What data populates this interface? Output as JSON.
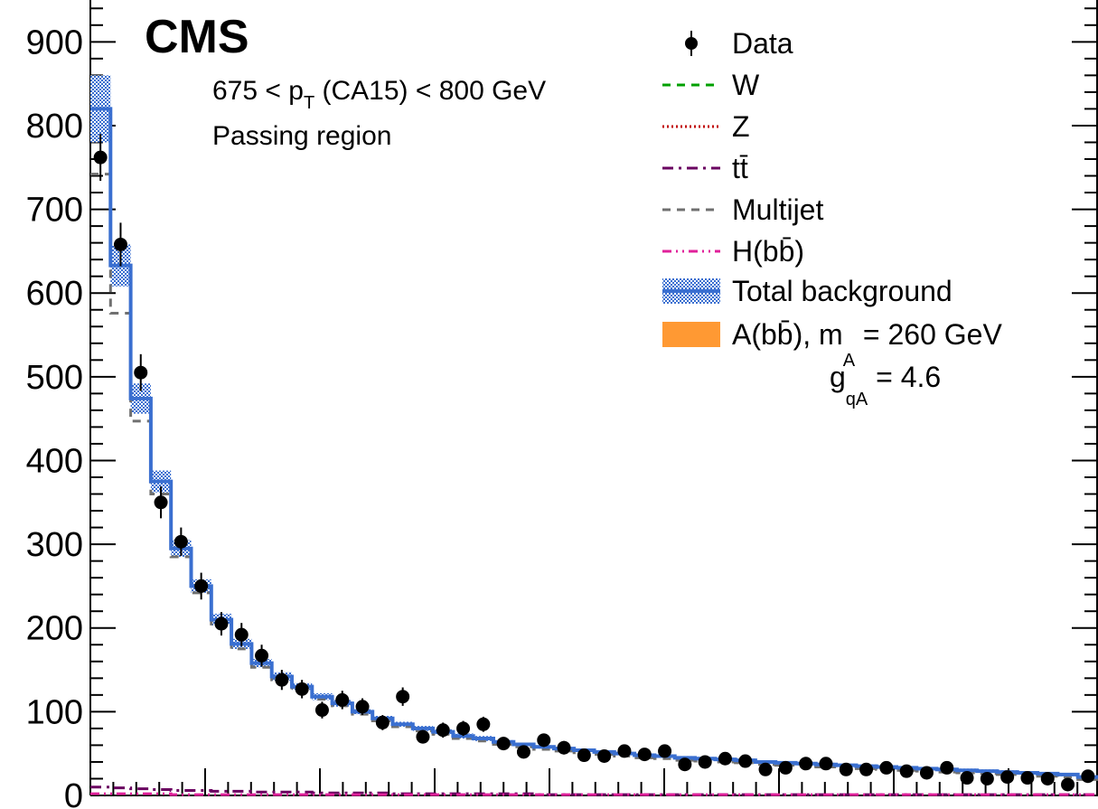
{
  "chart_data": {
    "type": "line",
    "experiment_label": "CMS",
    "annotations": [
      "675 < p_T (CA15) < 800 GeV",
      "Passing region"
    ],
    "xlabel": "",
    "ylabel": "",
    "ylim": [
      0,
      950
    ],
    "y_ticks": [
      0,
      100,
      200,
      300,
      400,
      500,
      600,
      700,
      800,
      900
    ],
    "y_tick_labels": [
      "0",
      "100",
      "200",
      "300",
      "400",
      "500",
      "600",
      "700",
      "800",
      "900"
    ],
    "n_bins": 50,
    "grid": false,
    "legend_position": "top-right",
    "legend": [
      {
        "key": "data",
        "label": "Data",
        "color": "#000000"
      },
      {
        "key": "w",
        "label": "W",
        "color": "#00a000"
      },
      {
        "key": "z",
        "label": "Z",
        "color": "#c00000"
      },
      {
        "key": "tt",
        "label": "tt̄",
        "color": "#6a0060"
      },
      {
        "key": "multijet",
        "label": "Multijet",
        "color": "#707070"
      },
      {
        "key": "hbb",
        "label": "H(bb̄)",
        "color": "#e0209a"
      },
      {
        "key": "total",
        "label": "Total background",
        "color": "#3a6fd0"
      },
      {
        "key": "signal",
        "label": "A(bb̄), m_A = 260 GeV",
        "color": "#ff9933"
      }
    ],
    "signal_coupling_label": "g_qA = 4.6",
    "series": [
      {
        "name": "Data",
        "values": [
          762,
          658,
          505,
          350,
          303,
          250,
          205,
          192,
          167,
          138,
          127,
          102,
          114,
          106,
          87,
          118,
          70,
          78,
          80,
          85,
          62,
          52,
          66,
          57,
          48,
          47,
          53,
          49,
          53,
          37,
          40,
          44,
          41,
          31,
          33,
          38,
          38,
          31,
          31,
          33,
          29,
          27,
          33,
          21,
          20,
          22,
          21,
          20,
          13,
          23
        ],
        "errors": [
          28,
          26,
          22,
          19,
          17,
          16,
          14,
          14,
          13,
          12,
          11,
          10,
          11,
          10,
          9,
          11,
          8,
          9,
          9,
          9,
          8,
          7,
          8,
          8,
          7,
          7,
          7,
          7,
          7,
          6,
          6,
          7,
          6,
          6,
          6,
          6,
          6,
          6,
          6,
          6,
          5,
          5,
          6,
          5,
          4,
          5,
          5,
          4,
          4,
          5
        ]
      },
      {
        "name": "Total background",
        "values": [
          820,
          633,
          474,
          375,
          295,
          250,
          210,
          181,
          158,
          142,
          130,
          118,
          110,
          100,
          92,
          85,
          80,
          76,
          71,
          68,
          64,
          61,
          58,
          56,
          54,
          52,
          50,
          48,
          47,
          45,
          44,
          43,
          42,
          40,
          39,
          38,
          37,
          36,
          35,
          34,
          33,
          32,
          31,
          30,
          29,
          28,
          27,
          26,
          25,
          22
        ],
        "uncertainty": [
          40,
          25,
          18,
          13,
          10,
          8,
          7,
          6,
          5,
          5,
          4,
          4,
          4,
          3,
          3,
          3,
          3,
          3,
          3,
          3,
          2,
          2,
          2,
          2,
          2,
          2,
          2,
          2,
          2,
          2,
          2,
          2,
          2,
          2,
          2,
          2,
          2,
          2,
          2,
          2,
          2,
          2,
          2,
          2,
          2,
          2,
          2,
          2,
          2,
          2
        ]
      },
      {
        "name": "Multijet",
        "values": [
          742,
          576,
          447,
          360,
          285,
          242,
          203,
          175,
          153,
          138,
          126,
          115,
          107,
          97,
          89,
          82,
          77,
          73,
          68,
          65,
          61,
          58,
          55,
          53,
          51,
          49,
          47,
          45,
          44,
          42,
          41,
          40,
          39,
          37,
          36,
          35,
          34,
          33,
          32,
          31,
          30,
          29,
          28,
          27,
          26,
          25,
          24,
          23,
          22,
          19
        ]
      },
      {
        "name": "tt̄",
        "values": [
          10,
          9,
          8,
          7,
          6,
          6,
          5,
          5,
          4,
          4,
          4,
          3,
          3,
          3,
          3,
          2,
          2,
          2,
          2,
          2,
          2,
          2,
          1,
          1,
          1,
          1,
          1,
          1,
          1,
          1,
          1,
          1,
          1,
          1,
          1,
          1,
          1,
          1,
          1,
          1,
          1,
          1,
          1,
          1,
          1,
          1,
          1,
          1,
          1,
          1
        ]
      },
      {
        "name": "H(bb̄)",
        "values": [
          2,
          2,
          2,
          2,
          1,
          1,
          1,
          1,
          1,
          1,
          1,
          1,
          1,
          1,
          1,
          1,
          1,
          1,
          1,
          1,
          1,
          1,
          1,
          1,
          1,
          1,
          1,
          1,
          1,
          1,
          1,
          1,
          1,
          1,
          1,
          1,
          1,
          1,
          1,
          1,
          1,
          1,
          1,
          1,
          1,
          1,
          1,
          1,
          1,
          1
        ]
      }
    ]
  }
}
